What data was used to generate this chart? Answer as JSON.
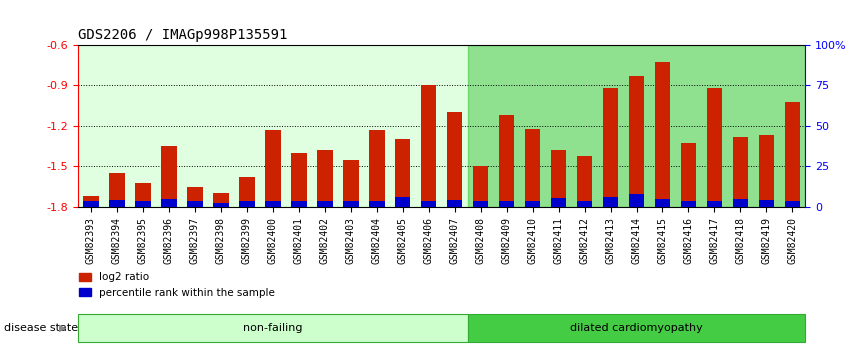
{
  "title": "GDS2206 / IMAGp998P135591",
  "categories": [
    "GSM82393",
    "GSM82394",
    "GSM82395",
    "GSM82396",
    "GSM82397",
    "GSM82398",
    "GSM82399",
    "GSM82400",
    "GSM82401",
    "GSM82402",
    "GSM82403",
    "GSM82404",
    "GSM82405",
    "GSM82406",
    "GSM82407",
    "GSM82408",
    "GSM82409",
    "GSM82410",
    "GSM82411",
    "GSM82412",
    "GSM82413",
    "GSM82414",
    "GSM82415",
    "GSM82416",
    "GSM82417",
    "GSM82418",
    "GSM82419",
    "GSM82420"
  ],
  "log2_values": [
    -1.72,
    -1.55,
    -1.62,
    -1.35,
    -1.65,
    -1.7,
    -1.58,
    -1.23,
    -1.4,
    -1.38,
    -1.45,
    -1.23,
    -1.3,
    -0.9,
    -1.1,
    -1.5,
    -1.12,
    -1.22,
    -1.38,
    -1.42,
    -0.92,
    -0.83,
    -0.73,
    -1.33,
    -0.92,
    -1.28,
    -1.27,
    -1.02
  ],
  "percentile_values": [
    3.5,
    4.5,
    3.5,
    5.0,
    3.5,
    2.5,
    3.5,
    4.0,
    3.5,
    3.5,
    3.5,
    3.5,
    6.0,
    3.5,
    4.5,
    3.5,
    3.5,
    3.5,
    5.5,
    3.5,
    6.0,
    8.0,
    5.0,
    3.5,
    3.5,
    5.0,
    4.5,
    4.0
  ],
  "non_failing_count": 15,
  "bar_color": "#cc2200",
  "percentile_color": "#0000cc",
  "nf_bg_color": "#ccffcc",
  "dc_bg_color": "#44cc44",
  "ylim_left": [
    -1.8,
    -0.6
  ],
  "ylim_right": [
    0,
    100
  ],
  "yticks_left": [
    -1.8,
    -1.5,
    -1.2,
    -0.9,
    -0.6
  ],
  "yticks_right": [
    0,
    25,
    50,
    75,
    100
  ],
  "label_log2": "log2 ratio",
  "label_pct": "percentile rank within the sample",
  "disease_state_label": "disease state",
  "nf_label": "non-failing",
  "dc_label": "dilated cardiomyopathy",
  "title_fontsize": 10,
  "tick_fontsize": 7,
  "bar_width": 0.6
}
